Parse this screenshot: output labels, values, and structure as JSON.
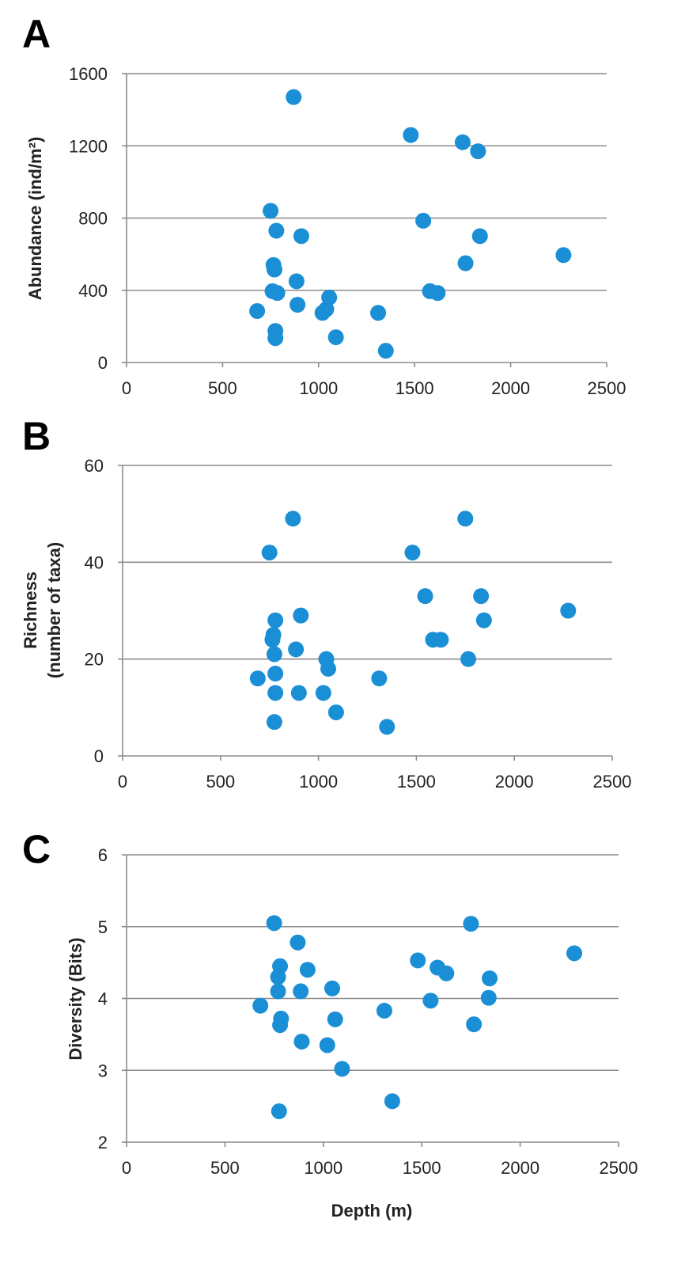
{
  "colors": {
    "point": "#1a8fd6"
  },
  "chart_data": [
    {
      "type": "scatter",
      "panel_label": "A",
      "ylabel": "Abundance  (ind/m²)",
      "xlabel": "",
      "xlim": [
        0,
        2500
      ],
      "ylim": [
        0,
        1600
      ],
      "xticks": [
        0,
        500,
        1000,
        1500,
        2000,
        2500
      ],
      "yticks": [
        0,
        400,
        800,
        1200,
        1600
      ],
      "grid": "horizontal",
      "points": [
        {
          "x": 870,
          "y": 1470
        },
        {
          "x": 1480,
          "y": 1260
        },
        {
          "x": 1750,
          "y": 1220
        },
        {
          "x": 1830,
          "y": 1170
        },
        {
          "x": 750,
          "y": 840
        },
        {
          "x": 780,
          "y": 730
        },
        {
          "x": 910,
          "y": 700
        },
        {
          "x": 1545,
          "y": 785
        },
        {
          "x": 1840,
          "y": 700
        },
        {
          "x": 2275,
          "y": 595
        },
        {
          "x": 1765,
          "y": 550
        },
        {
          "x": 765,
          "y": 540
        },
        {
          "x": 770,
          "y": 515
        },
        {
          "x": 885,
          "y": 450
        },
        {
          "x": 760,
          "y": 395
        },
        {
          "x": 785,
          "y": 385
        },
        {
          "x": 1580,
          "y": 395
        },
        {
          "x": 1620,
          "y": 385
        },
        {
          "x": 1055,
          "y": 360
        },
        {
          "x": 890,
          "y": 320
        },
        {
          "x": 1040,
          "y": 295
        },
        {
          "x": 1020,
          "y": 275
        },
        {
          "x": 680,
          "y": 285
        },
        {
          "x": 1310,
          "y": 275
        },
        {
          "x": 775,
          "y": 175
        },
        {
          "x": 1090,
          "y": 140
        },
        {
          "x": 775,
          "y": 135
        },
        {
          "x": 1350,
          "y": 65
        }
      ]
    },
    {
      "type": "scatter",
      "panel_label": "B",
      "ylabel": "Richness",
      "ylabel2": "(number of taxa)",
      "xlabel": "",
      "xlim": [
        0,
        2500
      ],
      "ylim": [
        0,
        60
      ],
      "xticks": [
        0,
        500,
        1000,
        1500,
        2000,
        2500
      ],
      "yticks": [
        0,
        20,
        40,
        60
      ],
      "grid": "horizontal",
      "points": [
        {
          "x": 870,
          "y": 49
        },
        {
          "x": 1750,
          "y": 49
        },
        {
          "x": 750,
          "y": 42
        },
        {
          "x": 1480,
          "y": 42
        },
        {
          "x": 1545,
          "y": 33
        },
        {
          "x": 1830,
          "y": 33
        },
        {
          "x": 2275,
          "y": 30
        },
        {
          "x": 910,
          "y": 29
        },
        {
          "x": 780,
          "y": 28
        },
        {
          "x": 1845,
          "y": 28
        },
        {
          "x": 770,
          "y": 25
        },
        {
          "x": 765,
          "y": 24
        },
        {
          "x": 1585,
          "y": 24
        },
        {
          "x": 1625,
          "y": 24
        },
        {
          "x": 885,
          "y": 22
        },
        {
          "x": 775,
          "y": 21
        },
        {
          "x": 1040,
          "y": 20
        },
        {
          "x": 1765,
          "y": 20
        },
        {
          "x": 1050,
          "y": 18
        },
        {
          "x": 780,
          "y": 17
        },
        {
          "x": 690,
          "y": 16
        },
        {
          "x": 1310,
          "y": 16
        },
        {
          "x": 780,
          "y": 13
        },
        {
          "x": 900,
          "y": 13
        },
        {
          "x": 1025,
          "y": 13
        },
        {
          "x": 1090,
          "y": 9
        },
        {
          "x": 775,
          "y": 7
        },
        {
          "x": 1350,
          "y": 6
        }
      ]
    },
    {
      "type": "scatter",
      "panel_label": "C",
      "ylabel": "Diversity (Bits)",
      "xlabel": "Depth (m)",
      "xlim": [
        0,
        2500
      ],
      "ylim": [
        2,
        6
      ],
      "xticks": [
        0,
        500,
        1000,
        1500,
        2000,
        2500
      ],
      "yticks": [
        2,
        3,
        4,
        5,
        6
      ],
      "grid": "horizontal",
      "points": [
        {
          "x": 750,
          "y": 5.05
        },
        {
          "x": 1750,
          "y": 5.04
        },
        {
          "x": 870,
          "y": 4.78
        },
        {
          "x": 2275,
          "y": 4.63
        },
        {
          "x": 1480,
          "y": 4.53
        },
        {
          "x": 780,
          "y": 4.45
        },
        {
          "x": 1580,
          "y": 4.43
        },
        {
          "x": 920,
          "y": 4.4
        },
        {
          "x": 1625,
          "y": 4.35
        },
        {
          "x": 770,
          "y": 4.3
        },
        {
          "x": 1845,
          "y": 4.28
        },
        {
          "x": 1045,
          "y": 4.14
        },
        {
          "x": 770,
          "y": 4.1
        },
        {
          "x": 885,
          "y": 4.1
        },
        {
          "x": 1840,
          "y": 4.01
        },
        {
          "x": 1545,
          "y": 3.97
        },
        {
          "x": 680,
          "y": 3.9
        },
        {
          "x": 1310,
          "y": 3.83
        },
        {
          "x": 785,
          "y": 3.72
        },
        {
          "x": 1060,
          "y": 3.71
        },
        {
          "x": 1765,
          "y": 3.64
        },
        {
          "x": 780,
          "y": 3.63
        },
        {
          "x": 890,
          "y": 3.4
        },
        {
          "x": 1020,
          "y": 3.35
        },
        {
          "x": 1095,
          "y": 3.02
        },
        {
          "x": 1350,
          "y": 2.57
        },
        {
          "x": 775,
          "y": 2.43
        }
      ]
    }
  ]
}
